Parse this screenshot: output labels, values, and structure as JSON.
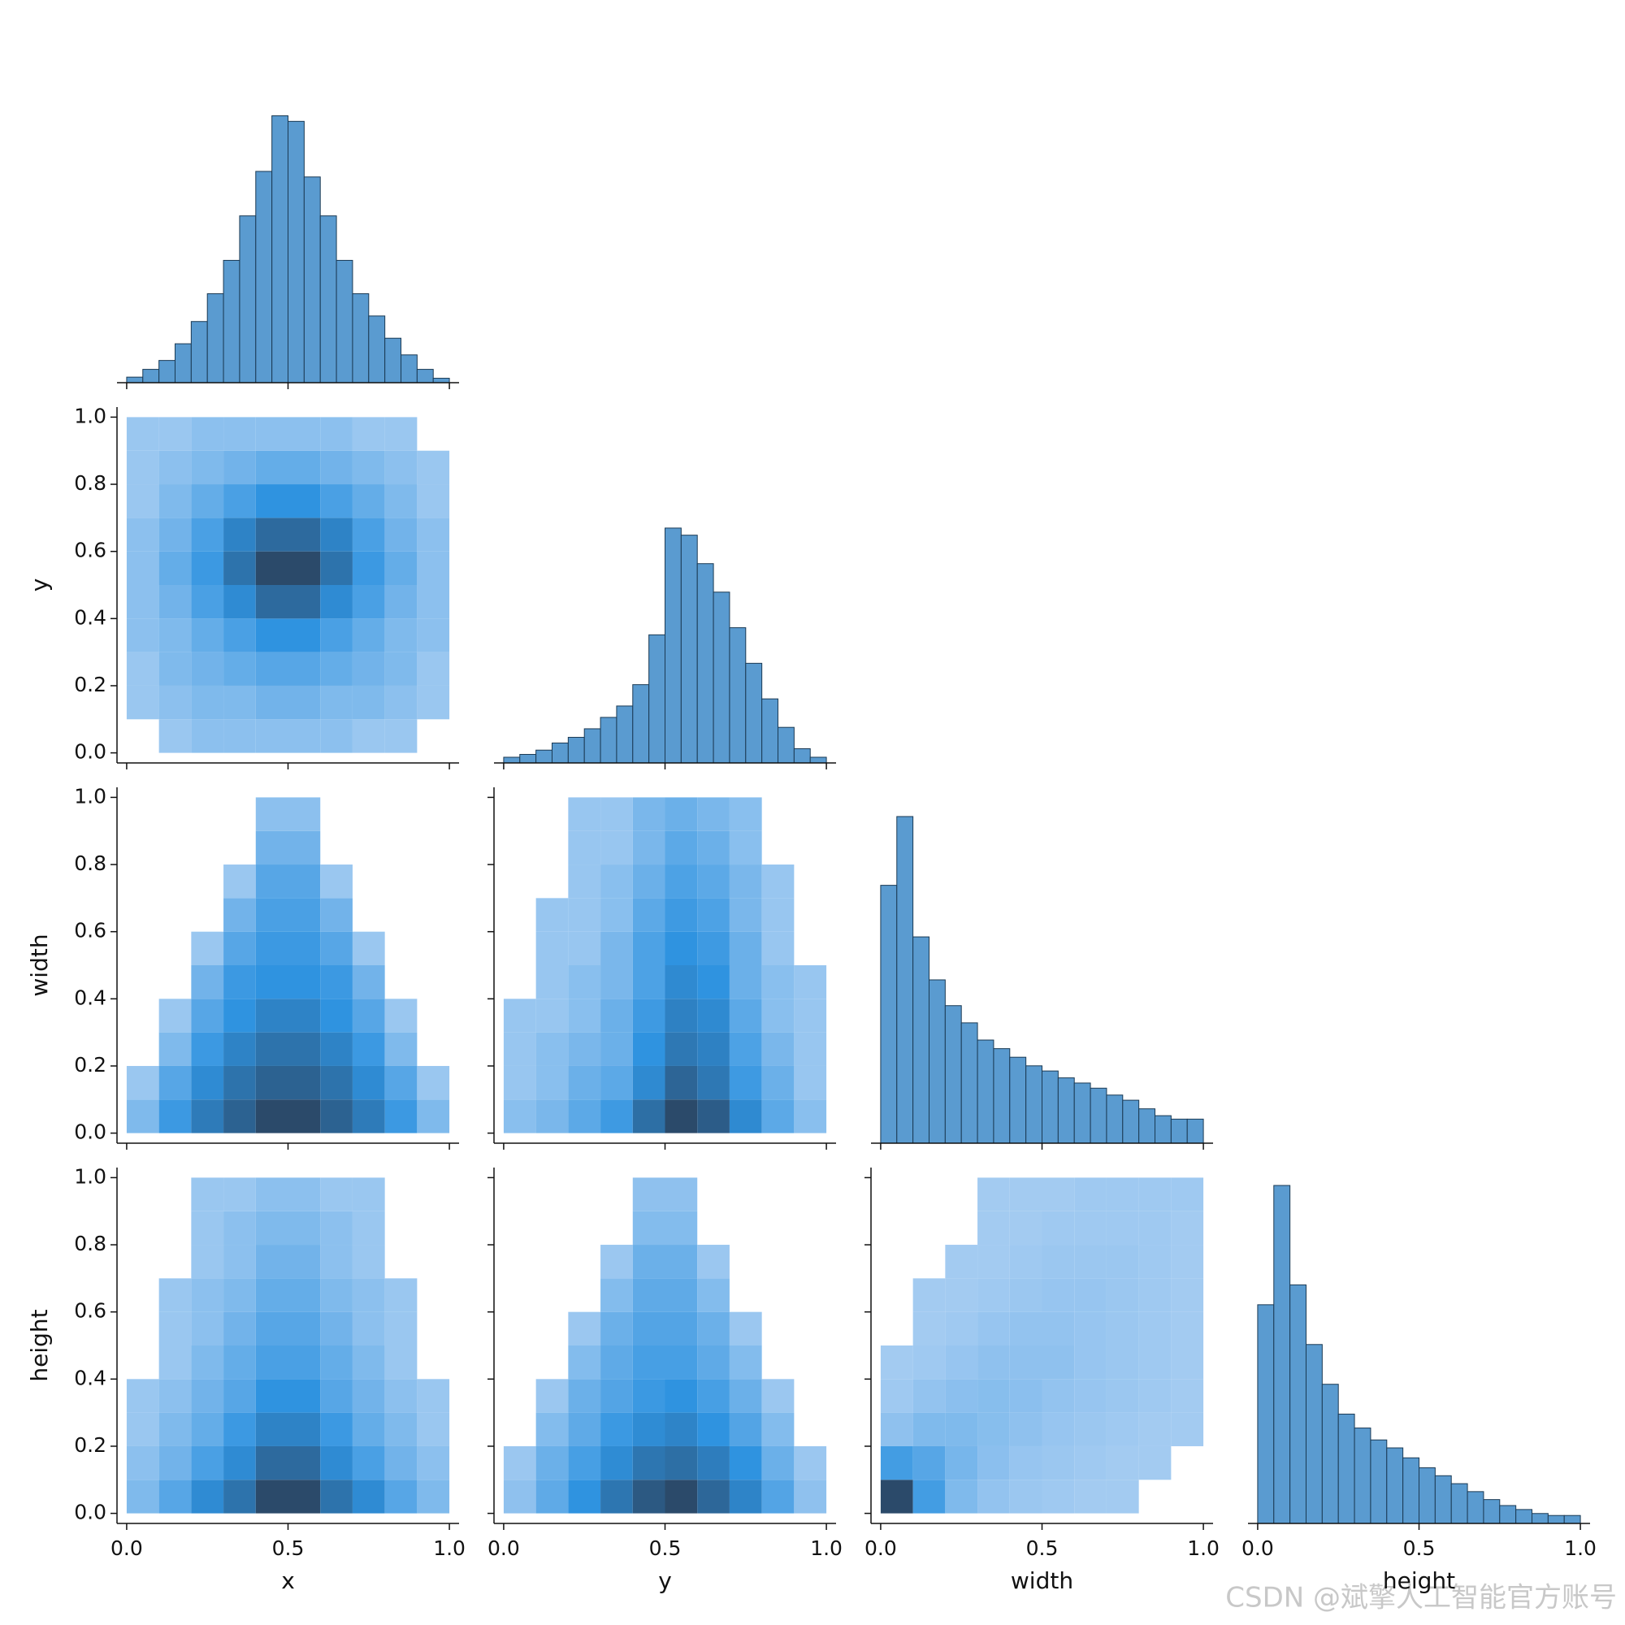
{
  "chart_data": {
    "type": "pairplot",
    "variables": [
      "x",
      "y",
      "width",
      "height"
    ],
    "lim": [
      -0.03,
      1.03
    ],
    "xticks": [
      {
        "value": 0,
        "label": "0.0"
      },
      {
        "value": 0.5,
        "label": "0.5"
      },
      {
        "value": 1,
        "label": "1.0"
      }
    ],
    "yticks": [
      {
        "value": 0,
        "label": "0.0"
      },
      {
        "value": 0.2,
        "label": "0.2"
      },
      {
        "value": 0.4,
        "label": "0.4"
      },
      {
        "value": 0.6,
        "label": "0.6"
      },
      {
        "value": 0.8,
        "label": "0.8"
      },
      {
        "value": 1,
        "label": "1.0"
      }
    ],
    "hist_color": "#5a9bd0",
    "hist_edge": "#1b3a54",
    "colors": [
      "#a7cdf2",
      "#2f93e0",
      "#2b4a6a"
    ],
    "panels": [
      {
        "type": "histogram",
        "bins": [
          0,
          0.05,
          0.1,
          0.15,
          0.2,
          0.25,
          0.3,
          0.35,
          0.4,
          0.45,
          0.5,
          0.55,
          0.6,
          0.65,
          0.7,
          0.75,
          0.8,
          0.85,
          0.9,
          0.95,
          1
        ],
        "counts": [
          5,
          12,
          20,
          35,
          55,
          80,
          110,
          150,
          190,
          240,
          235,
          185,
          150,
          110,
          80,
          60,
          40,
          25,
          12,
          4
        ],
        "ylim": [
          0,
          320
        ]
      },
      {
        "type": "hist2d",
        "xbins": [
          0,
          0.1,
          0.2,
          0.3,
          0.4,
          0.5,
          0.6,
          0.7,
          0.8,
          0.9,
          1
        ],
        "ybins": [
          0,
          0.1,
          0.2,
          0.3,
          0.4,
          0.5,
          0.6,
          0.7,
          0.8,
          0.9,
          1
        ],
        "counts": [
          [
            0,
            1,
            2,
            2,
            2,
            2,
            2,
            1,
            1,
            0
          ],
          [
            1,
            2,
            3,
            3,
            4,
            4,
            3,
            3,
            2,
            1
          ],
          [
            1,
            3,
            4,
            5,
            6,
            6,
            5,
            4,
            3,
            1
          ],
          [
            2,
            3,
            5,
            7,
            9,
            9,
            7,
            5,
            3,
            2
          ],
          [
            2,
            4,
            7,
            10,
            14,
            14,
            10,
            7,
            4,
            2
          ],
          [
            2,
            5,
            8,
            13,
            18,
            18,
            13,
            8,
            5,
            2
          ],
          [
            2,
            4,
            7,
            11,
            14,
            14,
            11,
            7,
            4,
            2
          ],
          [
            1,
            3,
            5,
            7,
            9,
            9,
            7,
            5,
            3,
            1
          ],
          [
            1,
            2,
            3,
            4,
            5,
            5,
            4,
            3,
            2,
            1
          ],
          [
            1,
            1,
            2,
            2,
            2,
            2,
            2,
            1,
            1,
            0
          ]
        ]
      },
      {
        "type": "histogram",
        "bins": [
          0,
          0.05,
          0.1,
          0.15,
          0.2,
          0.25,
          0.3,
          0.35,
          0.4,
          0.45,
          0.5,
          0.55,
          0.6,
          0.65,
          0.7,
          0.75,
          0.8,
          0.85,
          0.9,
          0.95,
          1
        ],
        "counts": [
          4,
          6,
          9,
          14,
          18,
          24,
          32,
          40,
          55,
          90,
          165,
          160,
          140,
          120,
          95,
          70,
          45,
          25,
          10,
          4
        ],
        "ylim": [
          0,
          250
        ]
      },
      {
        "type": "hist2d",
        "xbins": [
          0,
          0.1,
          0.2,
          0.3,
          0.4,
          0.5,
          0.6,
          0.7,
          0.8,
          0.9,
          1
        ],
        "ybins": [
          0,
          0.1,
          0.2,
          0.3,
          0.4,
          0.5,
          0.6,
          0.7,
          0.8,
          0.9,
          1
        ],
        "counts": [
          [
            3,
            8,
            12,
            15,
            18,
            18,
            15,
            12,
            8,
            3
          ],
          [
            1,
            6,
            10,
            13,
            15,
            15,
            13,
            10,
            6,
            1
          ],
          [
            0,
            3,
            8,
            11,
            13,
            13,
            11,
            8,
            3,
            0
          ],
          [
            0,
            1,
            6,
            9,
            11,
            11,
            9,
            6,
            1,
            0
          ],
          [
            0,
            0,
            4,
            8,
            9,
            9,
            8,
            4,
            0,
            0
          ],
          [
            0,
            0,
            1,
            6,
            8,
            8,
            6,
            1,
            0,
            0
          ],
          [
            0,
            0,
            0,
            4,
            7,
            7,
            4,
            0,
            0,
            0
          ],
          [
            0,
            0,
            0,
            1,
            6,
            6,
            1,
            0,
            0,
            0
          ],
          [
            0,
            0,
            0,
            0,
            4,
            4,
            0,
            0,
            0,
            0
          ],
          [
            0,
            0,
            0,
            0,
            2,
            2,
            0,
            0,
            0,
            0
          ]
        ]
      },
      {
        "type": "hist2d",
        "xbins": [
          0,
          0.1,
          0.2,
          0.3,
          0.4,
          0.5,
          0.6,
          0.7,
          0.8,
          0.9,
          1
        ],
        "ybins": [
          0,
          0.1,
          0.2,
          0.3,
          0.4,
          0.5,
          0.6,
          0.7,
          0.8,
          0.9,
          1
        ],
        "counts": [
          [
            2,
            3,
            5,
            7,
            12,
            16,
            14,
            9,
            5,
            2
          ],
          [
            1,
            2,
            4,
            5,
            9,
            13,
            11,
            7,
            4,
            1
          ],
          [
            1,
            2,
            3,
            4,
            8,
            11,
            10,
            6,
            3,
            1
          ],
          [
            1,
            1,
            2,
            4,
            7,
            10,
            9,
            5,
            2,
            1
          ],
          [
            0,
            1,
            2,
            3,
            6,
            9,
            8,
            4,
            2,
            1
          ],
          [
            0,
            1,
            1,
            3,
            6,
            8,
            7,
            4,
            1,
            0
          ],
          [
            0,
            1,
            1,
            2,
            5,
            7,
            6,
            3,
            1,
            0
          ],
          [
            0,
            0,
            1,
            2,
            4,
            6,
            5,
            3,
            1,
            0
          ],
          [
            0,
            0,
            1,
            1,
            3,
            5,
            4,
            2,
            0,
            0
          ],
          [
            0,
            0,
            1,
            1,
            3,
            4,
            3,
            2,
            0,
            0
          ]
        ]
      },
      {
        "type": "histogram",
        "bins": [
          0,
          0.05,
          0.1,
          0.15,
          0.2,
          0.25,
          0.3,
          0.35,
          0.4,
          0.45,
          0.5,
          0.55,
          0.6,
          0.65,
          0.7,
          0.75,
          0.8,
          0.85,
          0.9,
          0.95,
          1
        ],
        "counts": [
          150,
          190,
          120,
          95,
          80,
          70,
          60,
          55,
          50,
          45,
          42,
          38,
          35,
          32,
          28,
          25,
          20,
          16,
          14,
          14
        ],
        "ylim": [
          0,
          207
        ]
      },
      {
        "type": "hist2d",
        "xbins": [
          0,
          0.1,
          0.2,
          0.3,
          0.4,
          0.5,
          0.6,
          0.7,
          0.8,
          0.9,
          1
        ],
        "ybins": [
          0,
          0.1,
          0.2,
          0.3,
          0.4,
          0.5,
          0.6,
          0.7,
          0.8,
          0.9,
          1
        ],
        "counts": [
          [
            3,
            6,
            10,
            13,
            18,
            18,
            13,
            10,
            6,
            3
          ],
          [
            2,
            4,
            7,
            10,
            14,
            14,
            10,
            7,
            4,
            2
          ],
          [
            1,
            3,
            5,
            8,
            11,
            11,
            8,
            5,
            3,
            1
          ],
          [
            1,
            2,
            4,
            6,
            9,
            9,
            6,
            4,
            2,
            1
          ],
          [
            0,
            1,
            3,
            5,
            7,
            7,
            5,
            3,
            1,
            0
          ],
          [
            0,
            1,
            2,
            4,
            6,
            6,
            4,
            2,
            1,
            0
          ],
          [
            0,
            1,
            2,
            3,
            5,
            5,
            3,
            2,
            1,
            0
          ],
          [
            0,
            0,
            1,
            2,
            4,
            4,
            2,
            1,
            0,
            0
          ],
          [
            0,
            0,
            1,
            2,
            3,
            3,
            2,
            1,
            0,
            0
          ],
          [
            0,
            0,
            1,
            1,
            2,
            2,
            1,
            1,
            0,
            0
          ]
        ]
      },
      {
        "type": "hist2d",
        "xbins": [
          0,
          0.1,
          0.2,
          0.3,
          0.4,
          0.5,
          0.6,
          0.7,
          0.8,
          0.9,
          1
        ],
        "ybins": [
          0,
          0.1,
          0.2,
          0.3,
          0.4,
          0.5,
          0.6,
          0.7,
          0.8,
          0.9,
          1
        ],
        "counts": [
          [
            2,
            6,
            10,
            14,
            18,
            20,
            16,
            12,
            7,
            2
          ],
          [
            1,
            5,
            8,
            11,
            14,
            15,
            13,
            10,
            5,
            1
          ],
          [
            0,
            3,
            6,
            9,
            11,
            12,
            10,
            7,
            3,
            0
          ],
          [
            0,
            1,
            5,
            7,
            9,
            10,
            8,
            5,
            1,
            0
          ],
          [
            0,
            0,
            3,
            6,
            8,
            8,
            6,
            3,
            0,
            0
          ],
          [
            0,
            0,
            1,
            5,
            7,
            7,
            5,
            1,
            0,
            0
          ],
          [
            0,
            0,
            0,
            3,
            6,
            6,
            3,
            0,
            0,
            0
          ],
          [
            0,
            0,
            0,
            1,
            5,
            5,
            1,
            0,
            0,
            0
          ],
          [
            0,
            0,
            0,
            0,
            3,
            3,
            0,
            0,
            0,
            0
          ],
          [
            0,
            0,
            0,
            0,
            2,
            2,
            0,
            0,
            0,
            0
          ]
        ]
      },
      {
        "type": "hist2d",
        "xbins": [
          0,
          0.1,
          0.2,
          0.3,
          0.4,
          0.5,
          0.6,
          0.7,
          0.8,
          0.9,
          1
        ],
        "ybins": [
          0,
          0.1,
          0.2,
          0.3,
          0.4,
          0.5,
          0.6,
          0.7,
          0.8,
          0.9,
          1
        ],
        "counts": [
          [
            60,
            25,
            10,
            5,
            3,
            2,
            1,
            1,
            0,
            0
          ],
          [
            25,
            20,
            12,
            7,
            4,
            3,
            2,
            1,
            1,
            0
          ],
          [
            6,
            10,
            10,
            8,
            6,
            4,
            3,
            2,
            1,
            1
          ],
          [
            2,
            5,
            7,
            8,
            7,
            5,
            4,
            3,
            2,
            1
          ],
          [
            1,
            2,
            4,
            6,
            6,
            6,
            4,
            3,
            2,
            1
          ],
          [
            0,
            1,
            2,
            4,
            5,
            5,
            4,
            3,
            2,
            1
          ],
          [
            0,
            1,
            1,
            2,
            3,
            4,
            4,
            3,
            2,
            1
          ],
          [
            0,
            0,
            1,
            1,
            2,
            3,
            3,
            3,
            2,
            1
          ],
          [
            0,
            0,
            0,
            1,
            1,
            2,
            2,
            2,
            2,
            1
          ],
          [
            0,
            0,
            0,
            1,
            1,
            1,
            2,
            2,
            2,
            2
          ]
        ]
      },
      {
        "type": "histogram",
        "bins": [
          0,
          0.05,
          0.1,
          0.15,
          0.2,
          0.25,
          0.3,
          0.35,
          0.4,
          0.45,
          0.5,
          0.55,
          0.6,
          0.65,
          0.7,
          0.75,
          0.8,
          0.85,
          0.9,
          0.95,
          1
        ],
        "counts": [
          110,
          170,
          120,
          90,
          70,
          55,
          48,
          42,
          38,
          33,
          28,
          24,
          20,
          16,
          12,
          9,
          7,
          5,
          4,
          4
        ],
        "ylim": [
          0,
          179
        ]
      }
    ]
  },
  "watermark": "CSDN @斌擎人工智能官方账号"
}
